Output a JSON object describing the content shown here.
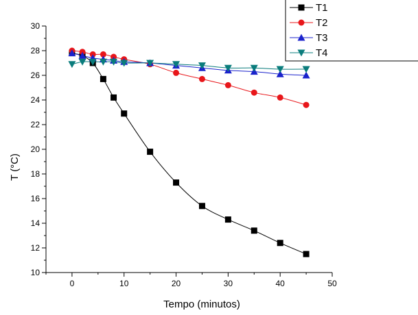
{
  "chart_data": {
    "type": "line",
    "title": "",
    "xlabel": "Tempo (minutos)",
    "ylabel": "T  (°C)",
    "xlim": [
      -5,
      50
    ],
    "ylim": [
      10,
      30
    ],
    "x_ticks": [
      0,
      10,
      20,
      30,
      40,
      50
    ],
    "x_tick_labels": [
      "0",
      "10",
      "20",
      "30",
      "40",
      "50"
    ],
    "y_ticks": [
      10,
      12,
      14,
      16,
      18,
      20,
      22,
      24,
      26,
      28,
      30
    ],
    "y_tick_labels": [
      "10",
      "12",
      "14",
      "16",
      "18",
      "20",
      "22",
      "24",
      "26",
      "28",
      "30"
    ],
    "grid": false,
    "legend_position": "top-right",
    "series": [
      {
        "name": "T1",
        "color": "#000000",
        "marker": "square",
        "x": [
          0,
          2,
          4,
          6,
          8,
          10,
          15,
          20,
          25,
          30,
          35,
          40,
          45
        ],
        "y": [
          27.8,
          27.6,
          27.0,
          25.7,
          24.2,
          22.9,
          19.8,
          17.3,
          15.4,
          14.3,
          13.4,
          12.4,
          11.5
        ]
      },
      {
        "name": "T2",
        "color": "#e8161a",
        "marker": "circle",
        "x": [
          0,
          2,
          4,
          6,
          8,
          10,
          15,
          20,
          25,
          30,
          35,
          40,
          45
        ],
        "y": [
          28.0,
          27.9,
          27.7,
          27.7,
          27.5,
          27.3,
          26.9,
          26.2,
          25.7,
          25.2,
          24.6,
          24.2,
          23.6
        ]
      },
      {
        "name": "T3",
        "color": "#1a22cc",
        "marker": "triangle-up",
        "x": [
          0,
          2,
          4,
          6,
          8,
          10,
          15,
          20,
          25,
          30,
          35,
          40,
          45
        ],
        "y": [
          27.8,
          27.6,
          27.4,
          27.3,
          27.2,
          27.1,
          27.0,
          26.8,
          26.6,
          26.4,
          26.3,
          26.1,
          26.0
        ]
      },
      {
        "name": "T4",
        "color": "#0a7c7c",
        "marker": "triangle-down",
        "x": [
          0,
          2,
          4,
          6,
          8,
          10,
          15,
          20,
          25,
          30,
          35,
          40,
          45
        ],
        "y": [
          26.9,
          27.1,
          27.1,
          27.1,
          27.1,
          27.0,
          27.0,
          26.9,
          26.8,
          26.6,
          26.6,
          26.5,
          26.5
        ]
      }
    ]
  }
}
